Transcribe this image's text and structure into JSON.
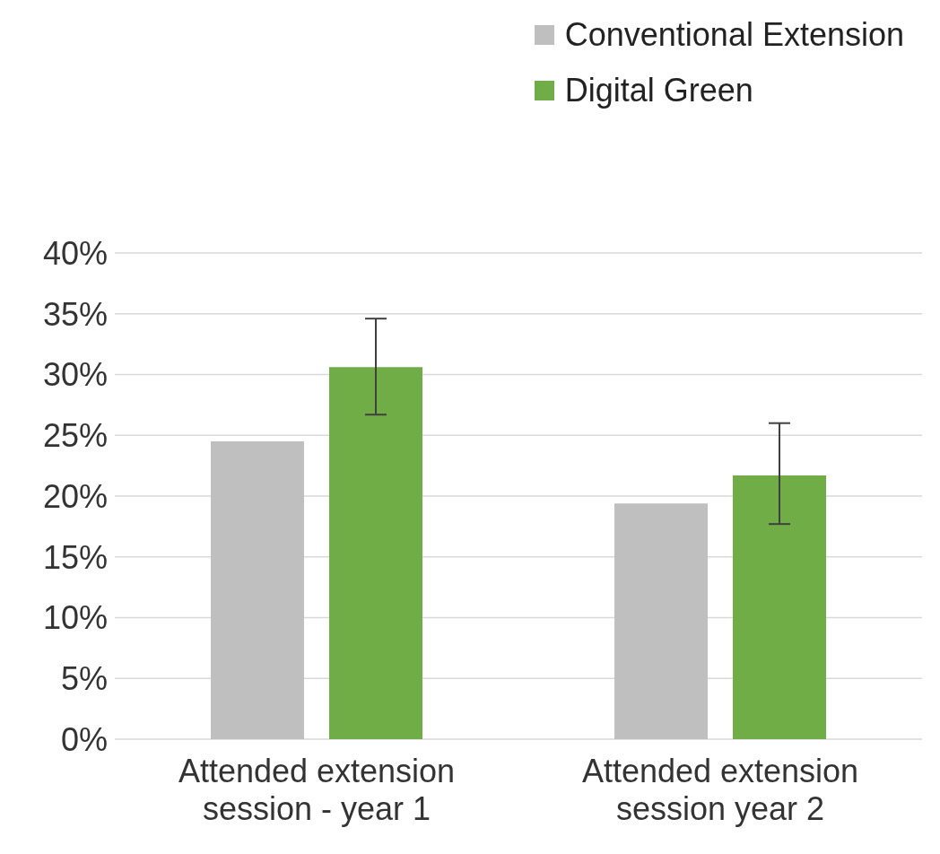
{
  "chart_data": {
    "type": "bar",
    "categories": [
      "Attended extension session - year 1",
      "Attended extension session year 2"
    ],
    "series": [
      {
        "name": "Conventional Extension",
        "color": "#bfbfbf",
        "values": [
          24.5,
          19.4
        ]
      },
      {
        "name": "Digital Green",
        "color": "#70ad47",
        "values": [
          30.6,
          21.7
        ],
        "errors": [
          [
            26.7,
            34.6
          ],
          [
            17.7,
            26.0
          ]
        ]
      }
    ],
    "ylim": [
      0,
      40
    ],
    "yticks": [
      {
        "value": 0,
        "label": "0%"
      },
      {
        "value": 5,
        "label": "5%"
      },
      {
        "value": 10,
        "label": "10%"
      },
      {
        "value": 15,
        "label": "15%"
      },
      {
        "value": 20,
        "label": "20%"
      },
      {
        "value": 25,
        "label": "25%"
      },
      {
        "value": 30,
        "label": "30%"
      },
      {
        "value": 35,
        "label": "35%"
      },
      {
        "value": 40,
        "label": "40%"
      }
    ],
    "grid": "y",
    "legend": "top right"
  }
}
